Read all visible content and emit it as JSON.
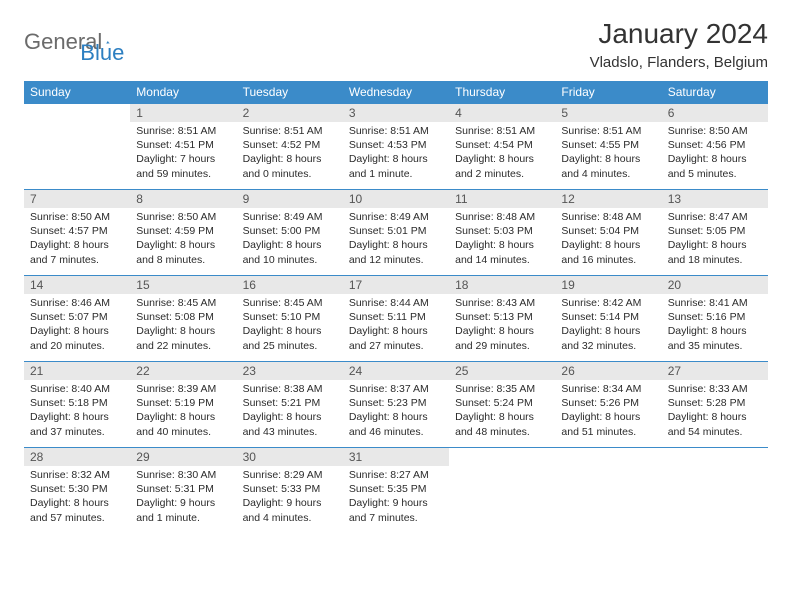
{
  "logo": {
    "text1": "General",
    "text2": "Blue"
  },
  "title": "January 2024",
  "location": "Vladslo, Flanders, Belgium",
  "colors": {
    "header_bg": "#3b8bc9",
    "header_fg": "#ffffff",
    "daynum_bg": "#e8e8e8",
    "border": "#3b8bc9",
    "logo_gray": "#6b6b6b",
    "logo_blue": "#2d7fc1"
  },
  "weekdays": [
    "Sunday",
    "Monday",
    "Tuesday",
    "Wednesday",
    "Thursday",
    "Friday",
    "Saturday"
  ],
  "weeks": [
    [
      null,
      {
        "n": "1",
        "sunrise": "Sunrise: 8:51 AM",
        "sunset": "Sunset: 4:51 PM",
        "day1": "Daylight: 7 hours",
        "day2": "and 59 minutes."
      },
      {
        "n": "2",
        "sunrise": "Sunrise: 8:51 AM",
        "sunset": "Sunset: 4:52 PM",
        "day1": "Daylight: 8 hours",
        "day2": "and 0 minutes."
      },
      {
        "n": "3",
        "sunrise": "Sunrise: 8:51 AM",
        "sunset": "Sunset: 4:53 PM",
        "day1": "Daylight: 8 hours",
        "day2": "and 1 minute."
      },
      {
        "n": "4",
        "sunrise": "Sunrise: 8:51 AM",
        "sunset": "Sunset: 4:54 PM",
        "day1": "Daylight: 8 hours",
        "day2": "and 2 minutes."
      },
      {
        "n": "5",
        "sunrise": "Sunrise: 8:51 AM",
        "sunset": "Sunset: 4:55 PM",
        "day1": "Daylight: 8 hours",
        "day2": "and 4 minutes."
      },
      {
        "n": "6",
        "sunrise": "Sunrise: 8:50 AM",
        "sunset": "Sunset: 4:56 PM",
        "day1": "Daylight: 8 hours",
        "day2": "and 5 minutes."
      }
    ],
    [
      {
        "n": "7",
        "sunrise": "Sunrise: 8:50 AM",
        "sunset": "Sunset: 4:57 PM",
        "day1": "Daylight: 8 hours",
        "day2": "and 7 minutes."
      },
      {
        "n": "8",
        "sunrise": "Sunrise: 8:50 AM",
        "sunset": "Sunset: 4:59 PM",
        "day1": "Daylight: 8 hours",
        "day2": "and 8 minutes."
      },
      {
        "n": "9",
        "sunrise": "Sunrise: 8:49 AM",
        "sunset": "Sunset: 5:00 PM",
        "day1": "Daylight: 8 hours",
        "day2": "and 10 minutes."
      },
      {
        "n": "10",
        "sunrise": "Sunrise: 8:49 AM",
        "sunset": "Sunset: 5:01 PM",
        "day1": "Daylight: 8 hours",
        "day2": "and 12 minutes."
      },
      {
        "n": "11",
        "sunrise": "Sunrise: 8:48 AM",
        "sunset": "Sunset: 5:03 PM",
        "day1": "Daylight: 8 hours",
        "day2": "and 14 minutes."
      },
      {
        "n": "12",
        "sunrise": "Sunrise: 8:48 AM",
        "sunset": "Sunset: 5:04 PM",
        "day1": "Daylight: 8 hours",
        "day2": "and 16 minutes."
      },
      {
        "n": "13",
        "sunrise": "Sunrise: 8:47 AM",
        "sunset": "Sunset: 5:05 PM",
        "day1": "Daylight: 8 hours",
        "day2": "and 18 minutes."
      }
    ],
    [
      {
        "n": "14",
        "sunrise": "Sunrise: 8:46 AM",
        "sunset": "Sunset: 5:07 PM",
        "day1": "Daylight: 8 hours",
        "day2": "and 20 minutes."
      },
      {
        "n": "15",
        "sunrise": "Sunrise: 8:45 AM",
        "sunset": "Sunset: 5:08 PM",
        "day1": "Daylight: 8 hours",
        "day2": "and 22 minutes."
      },
      {
        "n": "16",
        "sunrise": "Sunrise: 8:45 AM",
        "sunset": "Sunset: 5:10 PM",
        "day1": "Daylight: 8 hours",
        "day2": "and 25 minutes."
      },
      {
        "n": "17",
        "sunrise": "Sunrise: 8:44 AM",
        "sunset": "Sunset: 5:11 PM",
        "day1": "Daylight: 8 hours",
        "day2": "and 27 minutes."
      },
      {
        "n": "18",
        "sunrise": "Sunrise: 8:43 AM",
        "sunset": "Sunset: 5:13 PM",
        "day1": "Daylight: 8 hours",
        "day2": "and 29 minutes."
      },
      {
        "n": "19",
        "sunrise": "Sunrise: 8:42 AM",
        "sunset": "Sunset: 5:14 PM",
        "day1": "Daylight: 8 hours",
        "day2": "and 32 minutes."
      },
      {
        "n": "20",
        "sunrise": "Sunrise: 8:41 AM",
        "sunset": "Sunset: 5:16 PM",
        "day1": "Daylight: 8 hours",
        "day2": "and 35 minutes."
      }
    ],
    [
      {
        "n": "21",
        "sunrise": "Sunrise: 8:40 AM",
        "sunset": "Sunset: 5:18 PM",
        "day1": "Daylight: 8 hours",
        "day2": "and 37 minutes."
      },
      {
        "n": "22",
        "sunrise": "Sunrise: 8:39 AM",
        "sunset": "Sunset: 5:19 PM",
        "day1": "Daylight: 8 hours",
        "day2": "and 40 minutes."
      },
      {
        "n": "23",
        "sunrise": "Sunrise: 8:38 AM",
        "sunset": "Sunset: 5:21 PM",
        "day1": "Daylight: 8 hours",
        "day2": "and 43 minutes."
      },
      {
        "n": "24",
        "sunrise": "Sunrise: 8:37 AM",
        "sunset": "Sunset: 5:23 PM",
        "day1": "Daylight: 8 hours",
        "day2": "and 46 minutes."
      },
      {
        "n": "25",
        "sunrise": "Sunrise: 8:35 AM",
        "sunset": "Sunset: 5:24 PM",
        "day1": "Daylight: 8 hours",
        "day2": "and 48 minutes."
      },
      {
        "n": "26",
        "sunrise": "Sunrise: 8:34 AM",
        "sunset": "Sunset: 5:26 PM",
        "day1": "Daylight: 8 hours",
        "day2": "and 51 minutes."
      },
      {
        "n": "27",
        "sunrise": "Sunrise: 8:33 AM",
        "sunset": "Sunset: 5:28 PM",
        "day1": "Daylight: 8 hours",
        "day2": "and 54 minutes."
      }
    ],
    [
      {
        "n": "28",
        "sunrise": "Sunrise: 8:32 AM",
        "sunset": "Sunset: 5:30 PM",
        "day1": "Daylight: 8 hours",
        "day2": "and 57 minutes."
      },
      {
        "n": "29",
        "sunrise": "Sunrise: 8:30 AM",
        "sunset": "Sunset: 5:31 PM",
        "day1": "Daylight: 9 hours",
        "day2": "and 1 minute."
      },
      {
        "n": "30",
        "sunrise": "Sunrise: 8:29 AM",
        "sunset": "Sunset: 5:33 PM",
        "day1": "Daylight: 9 hours",
        "day2": "and 4 minutes."
      },
      {
        "n": "31",
        "sunrise": "Sunrise: 8:27 AM",
        "sunset": "Sunset: 5:35 PM",
        "day1": "Daylight: 9 hours",
        "day2": "and 7 minutes."
      },
      null,
      null,
      null
    ]
  ]
}
